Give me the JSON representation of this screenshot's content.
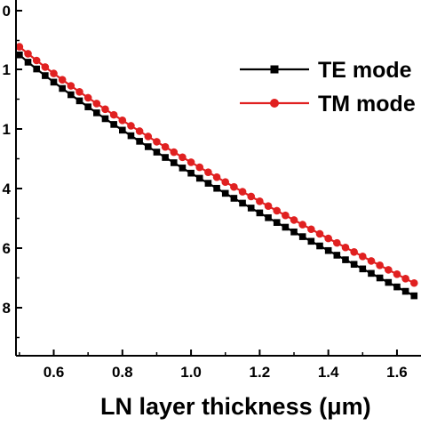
{
  "chart_data": {
    "type": "line",
    "xlabel": "LN layer thickness (μm)",
    "ylabel": "",
    "x_ticks": [
      "0.6",
      "0.8",
      "1.0",
      "1.2",
      "1.4",
      "1.6"
    ],
    "y_ticks": [
      "0",
      "1",
      "1",
      "4",
      "6",
      "8"
    ],
    "xlim": [
      0.49,
      1.67
    ],
    "grid": false,
    "legend_position": "top-right",
    "x": [
      0.5,
      0.525,
      0.55,
      0.575,
      0.6,
      0.625,
      0.65,
      0.675,
      0.7,
      0.725,
      0.75,
      0.775,
      0.8,
      0.825,
      0.85,
      0.875,
      0.9,
      0.925,
      0.95,
      0.975,
      1.0,
      1.025,
      1.05,
      1.075,
      1.1,
      1.125,
      1.15,
      1.175,
      1.2,
      1.225,
      1.25,
      1.275,
      1.3,
      1.325,
      1.35,
      1.375,
      1.4,
      1.425,
      1.45,
      1.475,
      1.5,
      1.525,
      1.55,
      1.575,
      1.6,
      1.625,
      1.65
    ],
    "series": [
      {
        "name": "TE mode",
        "color": "#000000",
        "marker": "square",
        "values": [
          0.29,
          0.196,
          0.108,
          0.022,
          -0.062,
          -0.144,
          -0.225,
          -0.304,
          -0.382,
          -0.459,
          -0.535,
          -0.609,
          -0.683,
          -0.755,
          -0.827,
          -0.897,
          -0.967,
          -1.036,
          -1.104,
          -1.172,
          -1.239,
          -1.305,
          -1.37,
          -1.435,
          -1.5,
          -1.564,
          -1.627,
          -1.69,
          -1.753,
          -1.815,
          -1.877,
          -1.938,
          -1.999,
          -2.06,
          -2.12,
          -2.18,
          -2.24,
          -2.3,
          -2.359,
          -2.418,
          -2.477,
          -2.535,
          -2.594,
          -2.652,
          -2.71,
          -2.767,
          -2.825
        ]
      },
      {
        "name": "TM mode",
        "color": "#e02020",
        "marker": "circle",
        "values": [
          0.395,
          0.305,
          0.218,
          0.133,
          0.05,
          -0.031,
          -0.11,
          -0.188,
          -0.264,
          -0.339,
          -0.412,
          -0.485,
          -0.556,
          -0.627,
          -0.696,
          -0.765,
          -0.833,
          -0.9,
          -0.967,
          -1.033,
          -1.098,
          -1.163,
          -1.227,
          -1.291,
          -1.354,
          -1.417,
          -1.479,
          -1.541,
          -1.603,
          -1.664,
          -1.725,
          -1.785,
          -1.845,
          -1.905,
          -1.964,
          -2.024,
          -2.083,
          -2.141,
          -2.2,
          -2.258,
          -2.316,
          -2.374,
          -2.431,
          -2.489,
          -2.546,
          -2.603,
          -2.66
        ]
      }
    ]
  }
}
